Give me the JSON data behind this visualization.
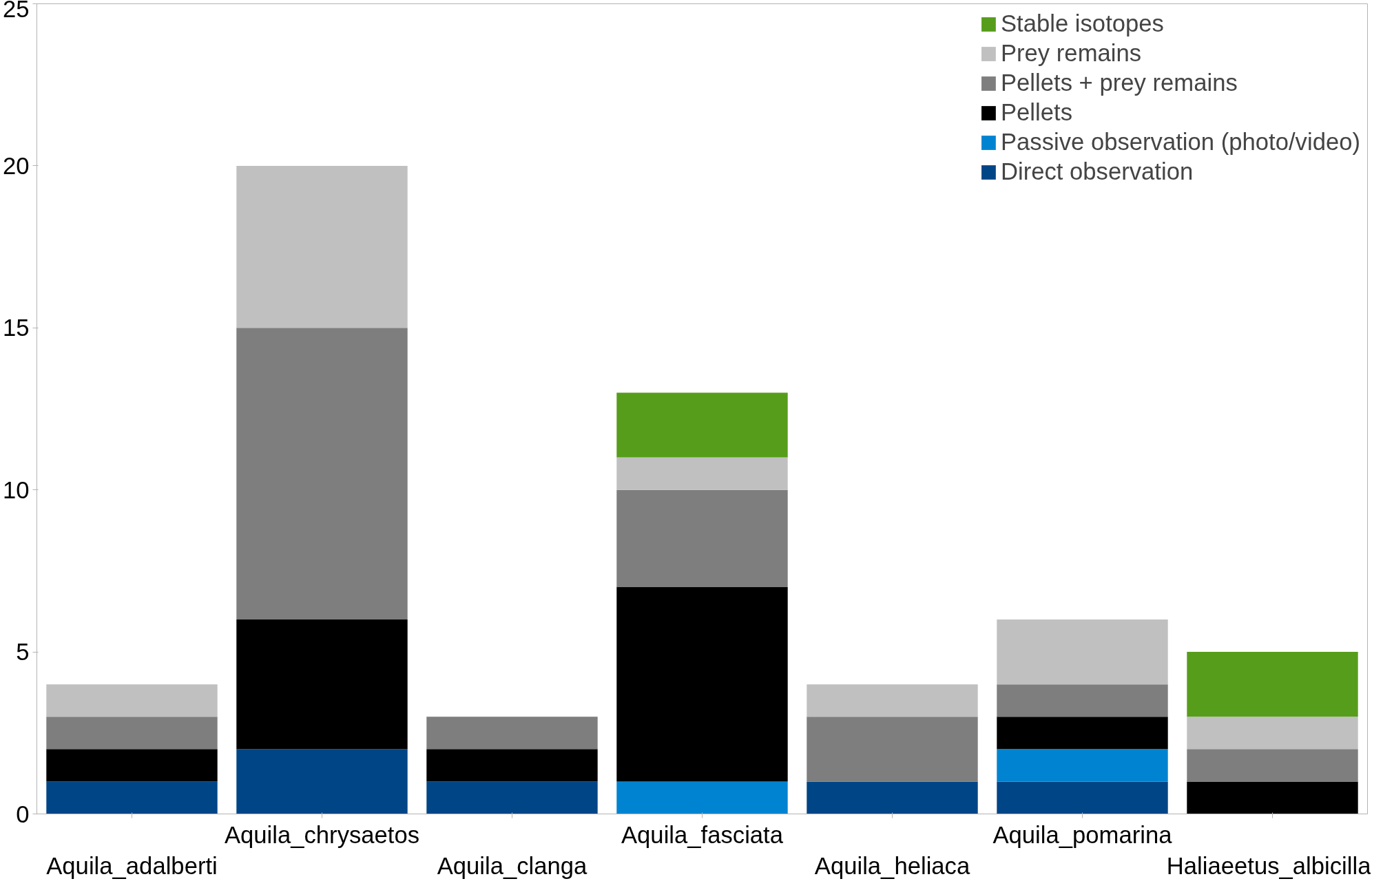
{
  "chart_data": {
    "type": "bar",
    "stacked": true,
    "categories": [
      "Aquila_adalberti",
      "Aquila_chrysaetos",
      "Aquila_clanga",
      "Aquila_fasciata",
      "Aquila_heliaca",
      "Aquila_pomarina",
      "Haliaeetus_albicilla"
    ],
    "series": [
      {
        "name": "Direct observation",
        "color": "#004586",
        "values": [
          1,
          2,
          1,
          null,
          1,
          1,
          null
        ]
      },
      {
        "name": "Passive observation (photo/video)",
        "color": "#0084d1",
        "values": [
          null,
          null,
          null,
          1,
          null,
          1,
          null
        ]
      },
      {
        "name": "Pellets",
        "color": "#000000",
        "values": [
          1,
          4,
          1,
          6,
          null,
          1,
          1
        ]
      },
      {
        "name": "Pellets + prey remains",
        "color": "#7e7e7e",
        "values": [
          1,
          9,
          1,
          3,
          2,
          1,
          1
        ]
      },
      {
        "name": "Prey remains",
        "color": "#c0c0c0",
        "values": [
          1,
          5,
          null,
          1,
          1,
          2,
          1
        ]
      },
      {
        "name": "Stable isotopes",
        "color": "#579d1c",
        "values": [
          null,
          null,
          null,
          2,
          null,
          null,
          2
        ]
      }
    ],
    "ylim": [
      0,
      25
    ],
    "yticks": [
      0,
      5,
      10,
      15,
      20,
      25
    ],
    "grid": false,
    "legend": "top right"
  }
}
